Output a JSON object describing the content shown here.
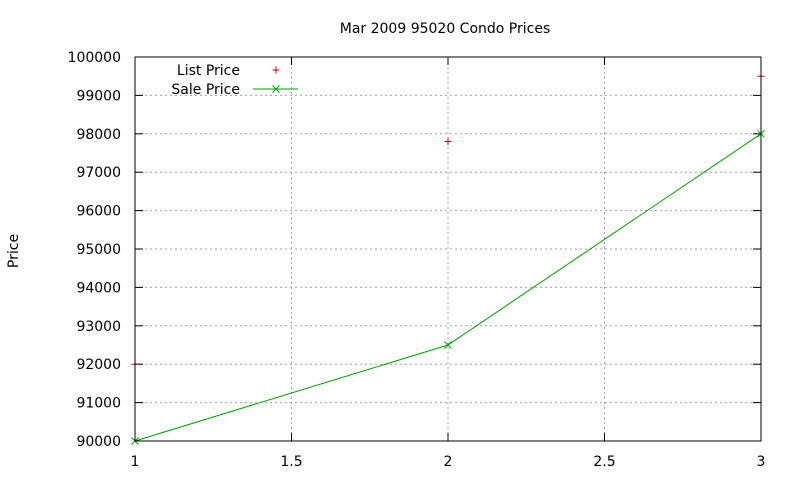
{
  "chart_data": {
    "type": "scatter",
    "title": "Mar 2009 95020 Condo Prices",
    "ylabel": "Price",
    "xlabel": "",
    "xlim": [
      1,
      3
    ],
    "ylim": [
      90000,
      100000
    ],
    "xticks": [
      1,
      1.5,
      2,
      2.5,
      3
    ],
    "xtick_labels": [
      "1",
      "1.5",
      "2",
      "2.5",
      "3"
    ],
    "yticks": [
      90000,
      91000,
      92000,
      93000,
      94000,
      95000,
      96000,
      97000,
      98000,
      99000,
      100000
    ],
    "ytick_labels": [
      "90000",
      "91000",
      "92000",
      "93000",
      "94000",
      "95000",
      "96000",
      "97000",
      "98000",
      "99000",
      "100000"
    ],
    "grid": true,
    "legend_position": "top-left",
    "series": [
      {
        "name": "List Price",
        "style": "points",
        "marker": "plus",
        "color": "#cc0000",
        "x": [
          1,
          2,
          3
        ],
        "y": [
          92000,
          97800,
          99500
        ]
      },
      {
        "name": "Sale Price",
        "style": "linespoints",
        "marker": "cross",
        "color": "#00a000",
        "x": [
          1,
          2,
          3
        ],
        "y": [
          90000,
          92500,
          98000
        ]
      }
    ]
  }
}
